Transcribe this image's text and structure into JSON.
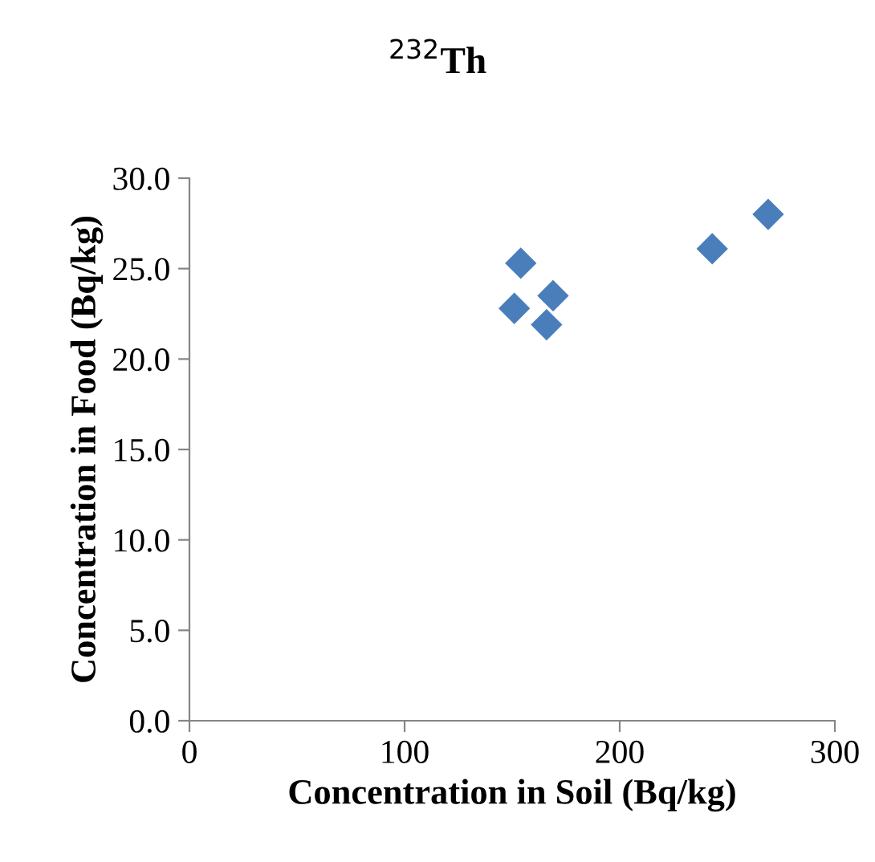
{
  "chart_data": {
    "type": "scatter",
    "title": "$^{232}$Th",
    "xlabel": "Concentration in Soil (Bq/kg)",
    "ylabel": "Concentration in Food (Bq/kg)",
    "series": [
      {
        "color": "#4a7ebb",
        "x": [
          154,
          151,
          169,
          166,
          243,
          269
        ],
        "values": [
          25.3,
          22.8,
          23.5,
          21.9,
          26.1,
          28.0
        ]
      }
    ],
    "xlim": [
      0,
      300
    ],
    "xticks": [
      0,
      100,
      200,
      300
    ],
    "ylim": [
      0,
      30
    ],
    "yticks": [
      {
        "value": 0,
        "label": "0.0"
      },
      {
        "value": 5,
        "label": "5.0"
      },
      {
        "value": 10,
        "label": "10.0"
      },
      {
        "value": 15,
        "label": "15.0"
      },
      {
        "value": 20,
        "label": "20.0"
      },
      {
        "value": 25,
        "label": "25.0"
      },
      {
        "value": 30,
        "label": "30.0"
      }
    ],
    "marker": "diamond",
    "grid": false,
    "legend": false
  }
}
